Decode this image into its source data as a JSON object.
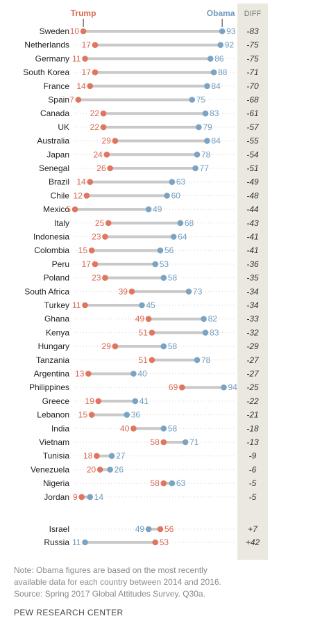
{
  "chart_data": {
    "type": "dot-plot",
    "legend": {
      "trump": "Trump",
      "obama": "Obama",
      "diff": "DIFF"
    },
    "colors": {
      "trump": "#e07560",
      "obama": "#7aa3c4",
      "line": "#c9c9c9",
      "diff_bg": "#ebe9df",
      "trump_text": "#d9674f",
      "obama_text": "#6f9bbd"
    },
    "rows": [
      {
        "country": "Sweden",
        "trump": 10,
        "obama": 93,
        "diff": "-83"
      },
      {
        "country": "Netherlands",
        "trump": 17,
        "obama": 92,
        "diff": "-75"
      },
      {
        "country": "Germany",
        "trump": 11,
        "obama": 86,
        "diff": "-75"
      },
      {
        "country": "South Korea",
        "trump": 17,
        "obama": 88,
        "diff": "-71"
      },
      {
        "country": "France",
        "trump": 14,
        "obama": 84,
        "diff": "-70"
      },
      {
        "country": "Spain",
        "trump": 7,
        "obama": 75,
        "diff": "-68"
      },
      {
        "country": "Canada",
        "trump": 22,
        "obama": 83,
        "diff": "-61"
      },
      {
        "country": "UK",
        "trump": 22,
        "obama": 79,
        "diff": "-57"
      },
      {
        "country": "Australia",
        "trump": 29,
        "obama": 84,
        "diff": "-55"
      },
      {
        "country": "Japan",
        "trump": 24,
        "obama": 78,
        "diff": "-54"
      },
      {
        "country": "Senegal",
        "trump": 26,
        "obama": 77,
        "diff": "-51"
      },
      {
        "country": "Brazil",
        "trump": 14,
        "obama": 63,
        "diff": "-49"
      },
      {
        "country": "Chile",
        "trump": 12,
        "obama": 60,
        "diff": "-48"
      },
      {
        "country": "Mexico",
        "trump": 5,
        "obama": 49,
        "diff": "-44"
      },
      {
        "country": "Italy",
        "trump": 25,
        "obama": 68,
        "diff": "-43"
      },
      {
        "country": "Indonesia",
        "trump": 23,
        "obama": 64,
        "diff": "-41"
      },
      {
        "country": "Colombia",
        "trump": 15,
        "obama": 56,
        "diff": "-41"
      },
      {
        "country": "Peru",
        "trump": 17,
        "obama": 53,
        "diff": "-36"
      },
      {
        "country": "Poland",
        "trump": 23,
        "obama": 58,
        "diff": "-35"
      },
      {
        "country": "South Africa",
        "trump": 39,
        "obama": 73,
        "diff": "-34"
      },
      {
        "country": "Turkey",
        "trump": 11,
        "obama": 45,
        "diff": "-34"
      },
      {
        "country": "Ghana",
        "trump": 49,
        "obama": 82,
        "diff": "-33"
      },
      {
        "country": "Kenya",
        "trump": 51,
        "obama": 83,
        "diff": "-32"
      },
      {
        "country": "Hungary",
        "trump": 29,
        "obama": 58,
        "diff": "-29"
      },
      {
        "country": "Tanzania",
        "trump": 51,
        "obama": 78,
        "diff": "-27"
      },
      {
        "country": "Argentina",
        "trump": 13,
        "obama": 40,
        "diff": "-27"
      },
      {
        "country": "Philippines",
        "trump": 69,
        "obama": 94,
        "diff": "-25"
      },
      {
        "country": "Greece",
        "trump": 19,
        "obama": 41,
        "diff": "-22"
      },
      {
        "country": "Lebanon",
        "trump": 15,
        "obama": 36,
        "diff": "-21"
      },
      {
        "country": "India",
        "trump": 40,
        "obama": 58,
        "diff": "-18"
      },
      {
        "country": "Vietnam",
        "trump": 58,
        "obama": 71,
        "diff": "-13"
      },
      {
        "country": "Tunisia",
        "trump": 18,
        "obama": 27,
        "diff": "-9"
      },
      {
        "country": "Venezuela",
        "trump": 20,
        "obama": 26,
        "diff": "-6"
      },
      {
        "country": "Nigeria",
        "trump": 58,
        "obama": 63,
        "diff": "-5"
      },
      {
        "country": "Jordan",
        "trump": 9,
        "obama": 14,
        "diff": "-5"
      },
      {
        "country": "Israel",
        "trump": 56,
        "obama": 49,
        "diff": "+7"
      },
      {
        "country": "Russia",
        "trump": 53,
        "obama": 11,
        "diff": "+42"
      }
    ]
  },
  "note": {
    "line1": "Note: Obama figures are based on the most recently",
    "line2": "available data for each country between 2014 and 2016.",
    "line3": "Source: Spring 2017 Global Attitudes Survey. Q30a."
  },
  "source_org": "PEW RESEARCH CENTER"
}
